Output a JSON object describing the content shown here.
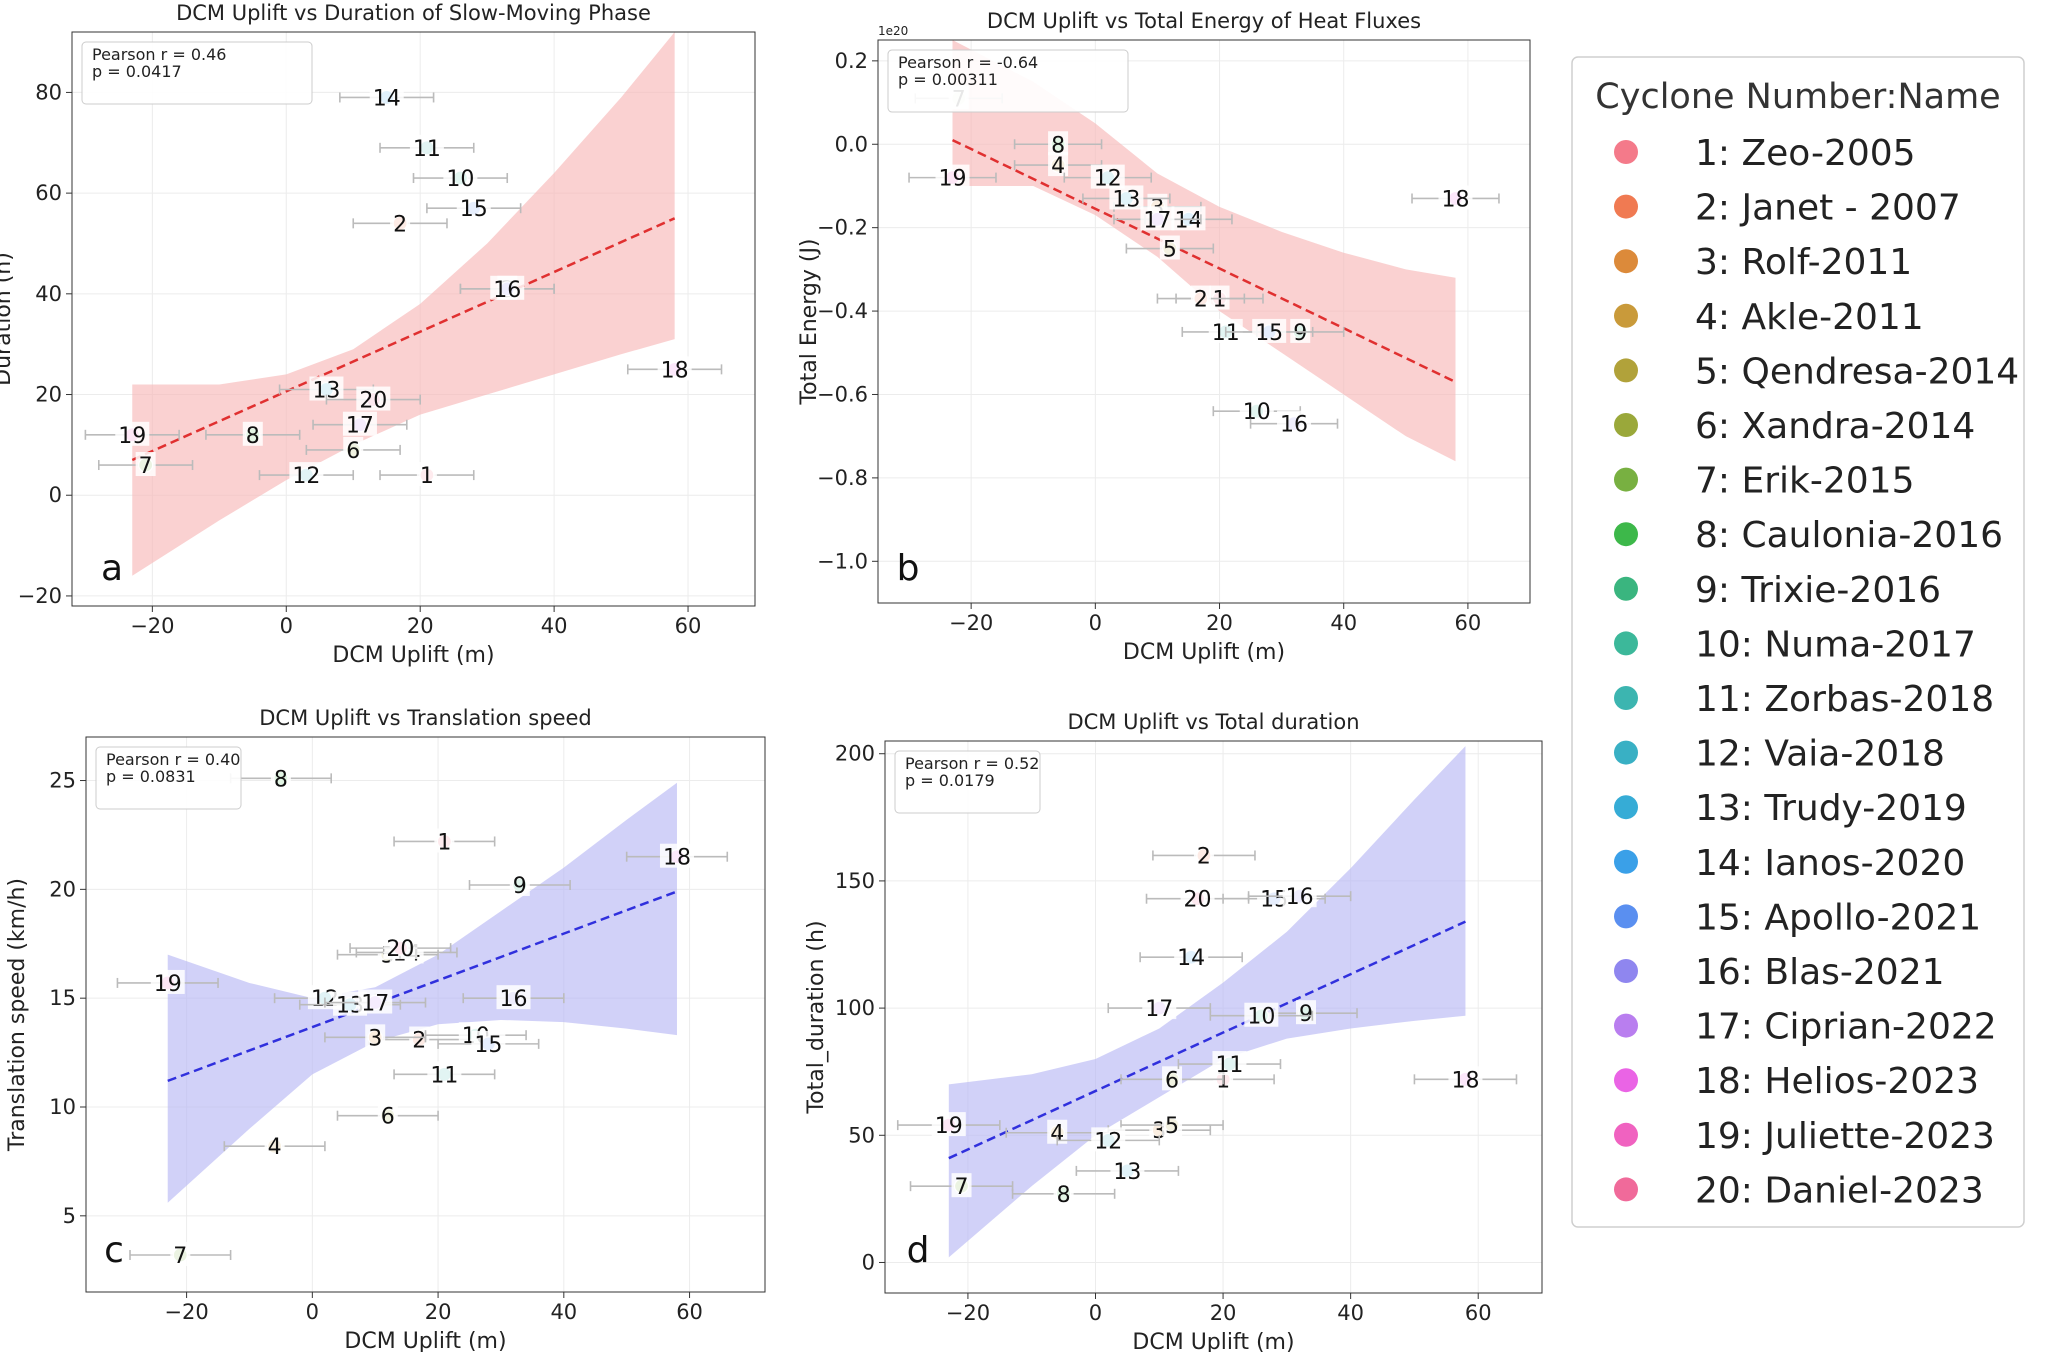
{
  "colors": {
    "series_palette": [
      "#f47a8a",
      "#f07a52",
      "#dc8a3a",
      "#c99a3a",
      "#b1a23a",
      "#9aa83a",
      "#78b041",
      "#3db84a",
      "#3ab57f",
      "#3cb89a",
      "#3cb5b0",
      "#39b0c4",
      "#36acd6",
      "#3aa0e8",
      "#5a8ff0",
      "#8f86ef",
      "#b97eef",
      "#ea64e5",
      "#f062c0",
      "#f06a9a"
    ],
    "trend_red": "#e03030",
    "band_red": "#f8b8b8",
    "trend_blue": "#3030dd",
    "band_blue": "#b8b8f4",
    "errorbar": "#bbbbbb"
  },
  "legend": {
    "title": "Cyclone Number:Name",
    "placement": "right",
    "items": [
      "1: Zeo-2005",
      "2: Janet - 2007",
      "3: Rolf-2011",
      "4: Akle-2011",
      "5: Qendresa-2014",
      "6: Xandra-2014",
      "7: Erik-2015",
      "8: Caulonia-2016",
      "9: Trixie-2016",
      "10: Numa-2017",
      "11: Zorbas-2018",
      "12: Vaia-2018",
      "13: Trudy-2019",
      "14: Ianos-2020",
      "15: Apollo-2021",
      "16: Blas-2021",
      "17: Ciprian-2022",
      "18: Helios-2023",
      "19: Juliette-2023",
      "20: Daniel-2023"
    ]
  },
  "chart_data": [
    {
      "type": "scatter",
      "panel": "a",
      "title": "DCM Uplift vs Duration of Slow-Moving Phase",
      "xlabel": "DCM Uplift (m)",
      "ylabel": "Duration (h)",
      "xlim": [
        -32,
        70
      ],
      "ylim": [
        -22,
        92
      ],
      "xticks": [
        -20,
        0,
        20,
        40,
        60
      ],
      "yticks": [
        -20,
        0,
        20,
        40,
        60,
        80
      ],
      "stats_text": [
        "Pearson r = 0.46",
        "p = 0.0417"
      ],
      "trend": {
        "x": [
          -23,
          58
        ],
        "y": [
          7,
          55
        ],
        "color": "red"
      },
      "band": {
        "x": [
          -23,
          -10,
          0,
          10,
          20,
          30,
          40,
          50,
          58
        ],
        "lower": [
          -16,
          -5,
          3,
          10,
          16,
          20,
          24,
          28,
          31
        ],
        "upper": [
          22,
          22,
          24,
          29,
          38,
          50,
          64,
          79,
          92
        ]
      },
      "points": [
        {
          "id": 1,
          "x": 21,
          "y": 4,
          "xerr": 7
        },
        {
          "id": 2,
          "x": 17,
          "y": 54,
          "xerr": 7
        },
        {
          "id": 3,
          "x": 33,
          "y": 41,
          "xerr": 7
        },
        {
          "id": 6,
          "x": 10,
          "y": 9,
          "xerr": 7
        },
        {
          "id": 7,
          "x": -21,
          "y": 6,
          "xerr": 7
        },
        {
          "id": 8,
          "x": -5,
          "y": 12,
          "xerr": 7
        },
        {
          "id": 10,
          "x": 26,
          "y": 63,
          "xerr": 7
        },
        {
          "id": 11,
          "x": 21,
          "y": 69,
          "xerr": 7
        },
        {
          "id": 12,
          "x": 3,
          "y": 4,
          "xerr": 7
        },
        {
          "id": 13,
          "x": 6,
          "y": 21,
          "xerr": 7
        },
        {
          "id": 14,
          "x": 15,
          "y": 79,
          "xerr": 7
        },
        {
          "id": 15,
          "x": 28,
          "y": 57,
          "xerr": 7
        },
        {
          "id": 16,
          "x": 33,
          "y": 41,
          "xerr": 7
        },
        {
          "id": 17,
          "x": 11,
          "y": 14,
          "xerr": 7
        },
        {
          "id": 18,
          "x": 58,
          "y": 25,
          "xerr": 7
        },
        {
          "id": 19,
          "x": -23,
          "y": 12,
          "xerr": 7
        },
        {
          "id": 20,
          "x": 13,
          "y": 19,
          "xerr": 7
        }
      ]
    },
    {
      "type": "scatter",
      "panel": "b",
      "title": "DCM Uplift vs Total Energy of Heat Fluxes",
      "xlabel": "DCM Uplift (m)",
      "ylabel": "Total Energy (J)",
      "offset_text": "1e20",
      "xlim": [
        -35,
        70
      ],
      "ylim": [
        -1.1,
        0.25
      ],
      "xticks": [
        -20,
        0,
        20,
        40,
        60
      ],
      "yticks": [
        -1.0,
        -0.8,
        -0.6,
        -0.4,
        -0.2,
        0.0,
        0.2
      ],
      "ytick_labels": [
        "−1.0",
        "−0.8",
        "−0.6",
        "−0.4",
        "−0.2",
        "0.0",
        "0.2"
      ],
      "stats_text": [
        "Pearson r = -0.64",
        "p = 0.00311"
      ],
      "trend": {
        "x": [
          -23,
          58
        ],
        "y": [
          0.01,
          -0.57
        ],
        "color": "red"
      },
      "band": {
        "x": [
          -23,
          -10,
          0,
          10,
          20,
          30,
          40,
          50,
          58
        ],
        "lower": [
          -0.1,
          -0.1,
          -0.17,
          -0.27,
          -0.4,
          -0.5,
          -0.6,
          -0.7,
          -0.76
        ],
        "upper": [
          0.25,
          0.15,
          0.05,
          -0.07,
          -0.15,
          -0.21,
          -0.26,
          -0.3,
          -0.32
        ]
      },
      "points": [
        {
          "id": 1,
          "x": 20,
          "y": -0.37,
          "xerr": 7
        },
        {
          "id": 2,
          "x": 17,
          "y": -0.37,
          "xerr": 7
        },
        {
          "id": 3,
          "x": 10,
          "y": -0.15,
          "xerr": 7
        },
        {
          "id": 4,
          "x": -6,
          "y": -0.05,
          "xerr": 7
        },
        {
          "id": 5,
          "x": 12,
          "y": -0.25,
          "xerr": 7
        },
        {
          "id": 7,
          "x": -22,
          "y": 0.11,
          "xerr": 7
        },
        {
          "id": 8,
          "x": -6,
          "y": 0.0,
          "xerr": 7
        },
        {
          "id": 9,
          "x": 33,
          "y": -0.45,
          "xerr": 7
        },
        {
          "id": 10,
          "x": 26,
          "y": -0.64,
          "xerr": 7
        },
        {
          "id": 11,
          "x": 21,
          "y": -0.45,
          "xerr": 7
        },
        {
          "id": 12,
          "x": 2,
          "y": -0.08,
          "xerr": 7
        },
        {
          "id": 13,
          "x": 5,
          "y": -0.13,
          "xerr": 7
        },
        {
          "id": 14,
          "x": 15,
          "y": -0.18,
          "xerr": 7
        },
        {
          "id": 15,
          "x": 28,
          "y": -0.45,
          "xerr": 7
        },
        {
          "id": 16,
          "x": 32,
          "y": -0.67,
          "xerr": 7
        },
        {
          "id": 17,
          "x": 10,
          "y": -0.18,
          "xerr": 7
        },
        {
          "id": 18,
          "x": 58,
          "y": -0.13,
          "xerr": 7
        },
        {
          "id": 19,
          "x": -23,
          "y": -0.08,
          "xerr": 7
        }
      ]
    },
    {
      "type": "scatter",
      "panel": "c",
      "title": "DCM Uplift vs Translation speed",
      "xlabel": "DCM Uplift (m)",
      "ylabel": "Translation speed (km/h)",
      "xlim": [
        -36,
        72
      ],
      "ylim": [
        1.5,
        27
      ],
      "xticks": [
        -20,
        0,
        20,
        40,
        60
      ],
      "yticks": [
        5,
        10,
        15,
        20,
        25
      ],
      "stats_text": [
        "Pearson r = 0.40",
        "p = 0.0831"
      ],
      "trend": {
        "x": [
          -23,
          58
        ],
        "y": [
          11.2,
          19.9
        ],
        "color": "blue"
      },
      "band": {
        "x": [
          -23,
          -10,
          0,
          10,
          20,
          30,
          40,
          50,
          58
        ],
        "lower": [
          5.6,
          9.0,
          11.5,
          13.0,
          13.8,
          14.0,
          13.9,
          13.6,
          13.3
        ],
        "upper": [
          17.0,
          15.7,
          15.0,
          15.5,
          17.0,
          19.0,
          21.0,
          23.2,
          24.9
        ]
      },
      "points": [
        {
          "id": 1,
          "x": 21,
          "y": 22.2,
          "xerr": 8
        },
        {
          "id": 2,
          "x": 17,
          "y": 13.1,
          "xerr": 8
        },
        {
          "id": 3,
          "x": 10,
          "y": 13.2,
          "xerr": 8
        },
        {
          "id": 4,
          "x": -6,
          "y": 8.2,
          "xerr": 8
        },
        {
          "id": 5,
          "x": 12,
          "y": 17.0,
          "xerr": 8
        },
        {
          "id": 6,
          "x": 12,
          "y": 9.6,
          "xerr": 8
        },
        {
          "id": 7,
          "x": -21,
          "y": 3.2,
          "xerr": 8
        },
        {
          "id": 8,
          "x": -5,
          "y": 25.1,
          "xerr": 8
        },
        {
          "id": 9,
          "x": 33,
          "y": 20.2,
          "xerr": 8
        },
        {
          "id": 10,
          "x": 26,
          "y": 13.3,
          "xerr": 8
        },
        {
          "id": 11,
          "x": 21,
          "y": 11.5,
          "xerr": 8
        },
        {
          "id": 12,
          "x": 2,
          "y": 15.0,
          "xerr": 8
        },
        {
          "id": 13,
          "x": 6,
          "y": 14.7,
          "xerr": 8
        },
        {
          "id": 14,
          "x": 15,
          "y": 17.1,
          "xerr": 8
        },
        {
          "id": 15,
          "x": 28,
          "y": 12.9,
          "xerr": 8
        },
        {
          "id": 16,
          "x": 32,
          "y": 15.0,
          "xerr": 8
        },
        {
          "id": 17,
          "x": 10,
          "y": 14.8,
          "xerr": 8
        },
        {
          "id": 18,
          "x": 58,
          "y": 21.5,
          "xerr": 8
        },
        {
          "id": 19,
          "x": -23,
          "y": 15.7,
          "xerr": 8
        },
        {
          "id": 20,
          "x": 14,
          "y": 17.3,
          "xerr": 8
        }
      ]
    },
    {
      "type": "scatter",
      "panel": "d",
      "title": "DCM Uplift vs Total duration",
      "xlabel": "DCM Uplift (m)",
      "ylabel": "Total_duration (h)",
      "xlim": [
        -33,
        70
      ],
      "ylim": [
        -12,
        205
      ],
      "xticks": [
        -20,
        0,
        20,
        40,
        60
      ],
      "yticks": [
        0,
        50,
        100,
        150,
        200
      ],
      "stats_text": [
        "Pearson r = 0.52",
        "p = 0.0179"
      ],
      "trend": {
        "x": [
          -23,
          58
        ],
        "y": [
          41,
          134
        ],
        "color": "blue"
      },
      "band": {
        "x": [
          -23,
          -10,
          0,
          10,
          20,
          30,
          40,
          50,
          58
        ],
        "lower": [
          2,
          30,
          50,
          65,
          80,
          88,
          92,
          95,
          97
        ],
        "upper": [
          70,
          74,
          80,
          92,
          110,
          130,
          155,
          182,
          203
        ]
      },
      "points": [
        {
          "id": 1,
          "x": 20,
          "y": 72,
          "xerr": 8
        },
        {
          "id": 2,
          "x": 17,
          "y": 160,
          "xerr": 8
        },
        {
          "id": 3,
          "x": 10,
          "y": 52,
          "xerr": 8
        },
        {
          "id": 4,
          "x": -6,
          "y": 51,
          "xerr": 8
        },
        {
          "id": 5,
          "x": 12,
          "y": 54,
          "xerr": 8
        },
        {
          "id": 6,
          "x": 12,
          "y": 72,
          "xerr": 8
        },
        {
          "id": 7,
          "x": -21,
          "y": 30,
          "xerr": 8
        },
        {
          "id": 8,
          "x": -5,
          "y": 27,
          "xerr": 8
        },
        {
          "id": 9,
          "x": 33,
          "y": 98,
          "xerr": 8
        },
        {
          "id": 10,
          "x": 26,
          "y": 97,
          "xerr": 8
        },
        {
          "id": 11,
          "x": 21,
          "y": 78,
          "xerr": 8
        },
        {
          "id": 12,
          "x": 2,
          "y": 48,
          "xerr": 8
        },
        {
          "id": 13,
          "x": 5,
          "y": 36,
          "xerr": 8
        },
        {
          "id": 14,
          "x": 15,
          "y": 120,
          "xerr": 8
        },
        {
          "id": 15,
          "x": 28,
          "y": 143,
          "xerr": 8
        },
        {
          "id": 16,
          "x": 32,
          "y": 144,
          "xerr": 8
        },
        {
          "id": 17,
          "x": 10,
          "y": 100,
          "xerr": 8
        },
        {
          "id": 18,
          "x": 58,
          "y": 72,
          "xerr": 8
        },
        {
          "id": 19,
          "x": -23,
          "y": 54,
          "xerr": 8
        },
        {
          "id": 20,
          "x": 16,
          "y": 143,
          "xerr": 8
        }
      ]
    }
  ]
}
